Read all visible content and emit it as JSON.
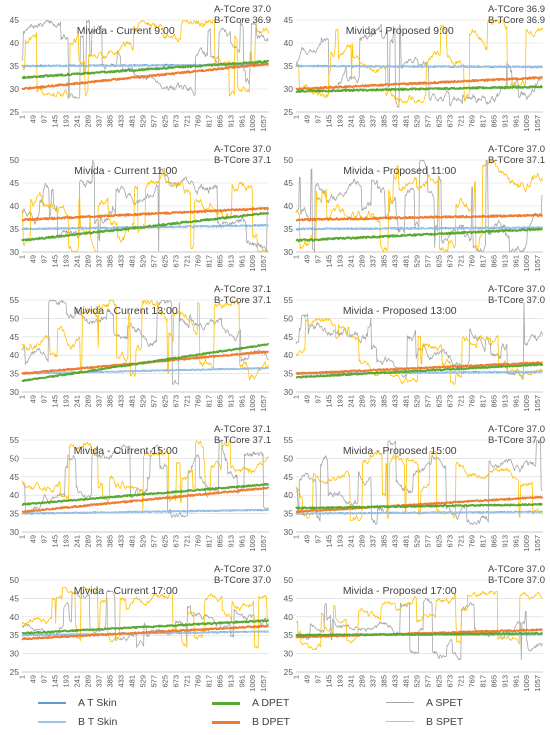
{
  "legend": [
    {
      "label": "A T Skin",
      "color": "#5b9bd5"
    },
    {
      "label": "A DPET",
      "color": "#5aa832"
    },
    {
      "label": "A SPET",
      "color": "#a5a5a5"
    },
    {
      "label": "B T Skin",
      "color": "#9dc3e6"
    },
    {
      "label": "B DPET",
      "color": "#ed7d31"
    },
    {
      "label": "B SPET",
      "color": "#ffc000"
    }
  ],
  "x_ticks": [
    "1",
    "49",
    "97",
    "145",
    "193",
    "241",
    "289",
    "337",
    "385",
    "433",
    "481",
    "529",
    "577",
    "625",
    "673",
    "721",
    "769",
    "817",
    "865",
    "913",
    "961",
    "1009",
    "1057"
  ],
  "chart_data": [
    {
      "type": "line",
      "title": "Mivida - Current 9:00",
      "tcore_a": "A-TCore 37.0",
      "tcore_b": "B-TCore 36.9",
      "ylim": [
        25,
        45
      ],
      "yticks": [
        25,
        30,
        35,
        40,
        45
      ],
      "n_points": 1080,
      "series": [
        {
          "name": "A T Skin",
          "start": 35.0,
          "end": 35.3
        },
        {
          "name": "B T Skin",
          "start": 35.0,
          "end": 35.2
        },
        {
          "name": "A DPET",
          "start": 32.5,
          "end": 36.0
        },
        {
          "name": "B DPET",
          "start": 30.0,
          "end": 35.5
        },
        {
          "name": "A SPET",
          "range": [
            28,
            45
          ]
        },
        {
          "name": "B SPET",
          "range": [
            27,
            45
          ]
        }
      ]
    },
    {
      "type": "line",
      "title": "Mivida - Proposed 9:00",
      "tcore_a": "A-TCore 36.9",
      "tcore_b": "B-TCore 36.9",
      "ylim": [
        25,
        45
      ],
      "yticks": [
        25,
        30,
        35,
        40,
        45
      ],
      "n_points": 1080,
      "series": [
        {
          "name": "A T Skin",
          "start": 35.0,
          "end": 34.8
        },
        {
          "name": "B T Skin",
          "start": 35.0,
          "end": 34.8
        },
        {
          "name": "A DPET",
          "start": 29.5,
          "end": 30.5
        },
        {
          "name": "B DPET",
          "start": 30.0,
          "end": 32.5
        },
        {
          "name": "A SPET",
          "range": [
            26,
            45
          ]
        },
        {
          "name": "B SPET",
          "range": [
            27,
            45
          ]
        }
      ]
    },
    {
      "type": "line",
      "title": "Mivida - Current 11:00",
      "tcore_a": "A-TCore 37.0",
      "tcore_b": "B-TCore 37.1",
      "ylim": [
        30,
        50
      ],
      "yticks": [
        30,
        35,
        40,
        45,
        50
      ],
      "n_points": 1080,
      "series": [
        {
          "name": "A T Skin",
          "start": 35.0,
          "end": 35.8
        },
        {
          "name": "B T Skin",
          "start": 35.0,
          "end": 35.8
        },
        {
          "name": "A DPET",
          "start": 32.5,
          "end": 38.5
        },
        {
          "name": "B DPET",
          "start": 37.0,
          "end": 39.5
        },
        {
          "name": "A SPET",
          "range": [
            30,
            50
          ]
        },
        {
          "name": "B SPET",
          "range": [
            30,
            50
          ]
        }
      ]
    },
    {
      "type": "line",
      "title": "Mivida - Proposed 11:00",
      "tcore_a": "A-TCore 37.0",
      "tcore_b": "B-TCore 37.1",
      "ylim": [
        30,
        50
      ],
      "yticks": [
        30,
        35,
        40,
        45,
        50
      ],
      "n_points": 1080,
      "series": [
        {
          "name": "A T Skin",
          "start": 35.0,
          "end": 35.3
        },
        {
          "name": "B T Skin",
          "start": 35.0,
          "end": 35.3
        },
        {
          "name": "A DPET",
          "start": 32.5,
          "end": 35.0
        },
        {
          "name": "B DPET",
          "start": 37.0,
          "end": 38.0
        },
        {
          "name": "A SPET",
          "range": [
            30,
            50
          ]
        },
        {
          "name": "B SPET",
          "range": [
            30,
            50
          ]
        }
      ]
    },
    {
      "type": "line",
      "title": "Mivida - Current 13:00",
      "tcore_a": "A-TCore 37.1",
      "tcore_b": "B-TCore 37.1",
      "ylim": [
        30,
        55
      ],
      "yticks": [
        30,
        35,
        40,
        45,
        50,
        55
      ],
      "n_points": 1080,
      "series": [
        {
          "name": "A T Skin",
          "start": 35.0,
          "end": 36.5
        },
        {
          "name": "B T Skin",
          "start": 35.0,
          "end": 36.5
        },
        {
          "name": "A DPET",
          "start": 33.0,
          "end": 43.0
        },
        {
          "name": "B DPET",
          "start": 35.0,
          "end": 41.0
        },
        {
          "name": "A SPET",
          "range": [
            32,
            55
          ]
        },
        {
          "name": "B SPET",
          "range": [
            32,
            55
          ]
        }
      ]
    },
    {
      "type": "line",
      "title": "Mivida - Proposed 13:00",
      "tcore_a": "A-TCore 37.0",
      "tcore_b": "B-TCore 37.0",
      "ylim": [
        30,
        55
      ],
      "yticks": [
        30,
        35,
        40,
        45,
        50,
        55
      ],
      "n_points": 1080,
      "series": [
        {
          "name": "A T Skin",
          "start": 35.0,
          "end": 35.5
        },
        {
          "name": "B T Skin",
          "start": 35.0,
          "end": 35.5
        },
        {
          "name": "A DPET",
          "start": 34.0,
          "end": 37.5
        },
        {
          "name": "B DPET",
          "start": 35.0,
          "end": 38.0
        },
        {
          "name": "A SPET",
          "range": [
            32,
            55
          ]
        },
        {
          "name": "B SPET",
          "range": [
            32,
            50
          ]
        }
      ]
    },
    {
      "type": "line",
      "title": "Mivida - Current 15:00",
      "tcore_a": "A-TCore 37.1",
      "tcore_b": "B-TCore 37.1",
      "ylim": [
        30,
        55
      ],
      "yticks": [
        30,
        35,
        40,
        45,
        50,
        55
      ],
      "n_points": 1080,
      "series": [
        {
          "name": "A T Skin",
          "start": 35.0,
          "end": 36.0
        },
        {
          "name": "B T Skin",
          "start": 35.0,
          "end": 36.0
        },
        {
          "name": "A DPET",
          "start": 37.5,
          "end": 43.0
        },
        {
          "name": "B DPET",
          "start": 35.5,
          "end": 42.0
        },
        {
          "name": "A SPET",
          "range": [
            34,
            55
          ]
        },
        {
          "name": "B SPET",
          "range": [
            34,
            55
          ]
        }
      ]
    },
    {
      "type": "line",
      "title": "Mivida - Proposed 15:00",
      "tcore_a": "A-TCore 37.0",
      "tcore_b": "B-TCore 37.0",
      "ylim": [
        30,
        55
      ],
      "yticks": [
        30,
        35,
        40,
        45,
        50,
        55
      ],
      "n_points": 1080,
      "series": [
        {
          "name": "A T Skin",
          "start": 35.0,
          "end": 35.5
        },
        {
          "name": "B T Skin",
          "start": 35.0,
          "end": 35.5
        },
        {
          "name": "A DPET",
          "start": 36.5,
          "end": 37.5
        },
        {
          "name": "B DPET",
          "start": 35.5,
          "end": 39.5
        },
        {
          "name": "A SPET",
          "range": [
            32,
            55
          ]
        },
        {
          "name": "B SPET",
          "range": [
            33,
            52
          ]
        }
      ]
    },
    {
      "type": "line",
      "title": "Mivida - Current 17:00",
      "tcore_a": "A-TCore 37.0",
      "tcore_b": "B-TCore 37.0",
      "ylim": [
        25,
        50
      ],
      "yticks": [
        25,
        30,
        35,
        40,
        45,
        50
      ],
      "n_points": 1080,
      "series": [
        {
          "name": "A T Skin",
          "start": 35.0,
          "end": 36.0
        },
        {
          "name": "B T Skin",
          "start": 35.0,
          "end": 36.0
        },
        {
          "name": "A DPET",
          "start": 35.5,
          "end": 39.0
        },
        {
          "name": "B DPET",
          "start": 34.0,
          "end": 37.5
        },
        {
          "name": "A SPET",
          "range": [
            30,
            47
          ]
        },
        {
          "name": "B SPET",
          "range": [
            31,
            48
          ]
        }
      ]
    },
    {
      "type": "line",
      "title": "Mivida - Proposed 17:00",
      "tcore_a": "A-TCore 37.0",
      "tcore_b": "B-TCore 37.0",
      "ylim": [
        25,
        50
      ],
      "yticks": [
        25,
        30,
        35,
        40,
        45,
        50
      ],
      "n_points": 1080,
      "series": [
        {
          "name": "A T Skin",
          "start": 35.0,
          "end": 35.2
        },
        {
          "name": "B T Skin",
          "start": 35.0,
          "end": 35.2
        },
        {
          "name": "A DPET",
          "start": 35.0,
          "end": 35.5
        },
        {
          "name": "B DPET",
          "start": 34.5,
          "end": 36.5
        },
        {
          "name": "A SPET",
          "range": [
            28,
            45
          ]
        },
        {
          "name": "B SPET",
          "range": [
            31,
            47
          ]
        }
      ]
    }
  ]
}
